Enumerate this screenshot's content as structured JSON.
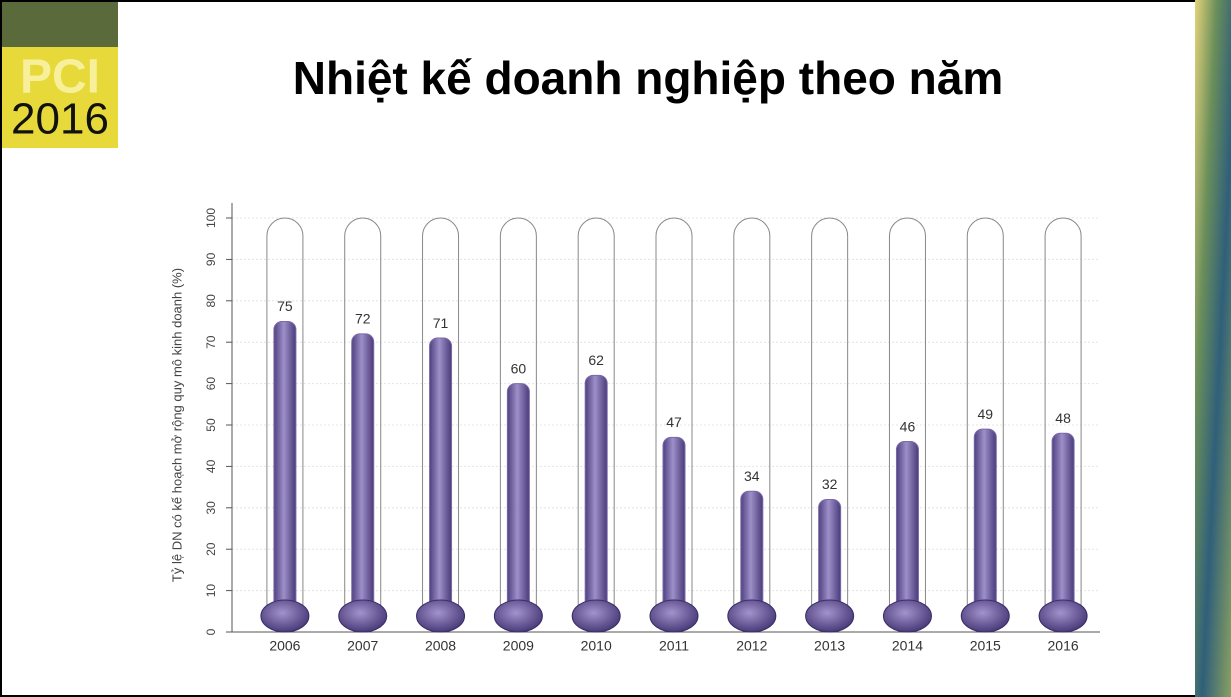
{
  "logo": {
    "brand": "PCI",
    "year": "2016"
  },
  "chart_data": {
    "type": "thermometer",
    "title": "Nhiệt kế doanh nghiệp theo năm",
    "y_label": "Tỷ lệ DN có kế hoạch mở rộng quy mô kinh doanh (%)",
    "categories": [
      "2006",
      "2007",
      "2008",
      "2009",
      "2010",
      "2011",
      "2012",
      "2013",
      "2014",
      "2015",
      "2016"
    ],
    "values": [
      75,
      72,
      71,
      60,
      62,
      47,
      34,
      32,
      46,
      49,
      48
    ],
    "color": "#7a6aa8",
    "ylim": [
      0,
      100
    ],
    "yticks": [
      0,
      10,
      20,
      30,
      40,
      50,
      60,
      70,
      80,
      90,
      100
    ],
    "grid": true
  }
}
